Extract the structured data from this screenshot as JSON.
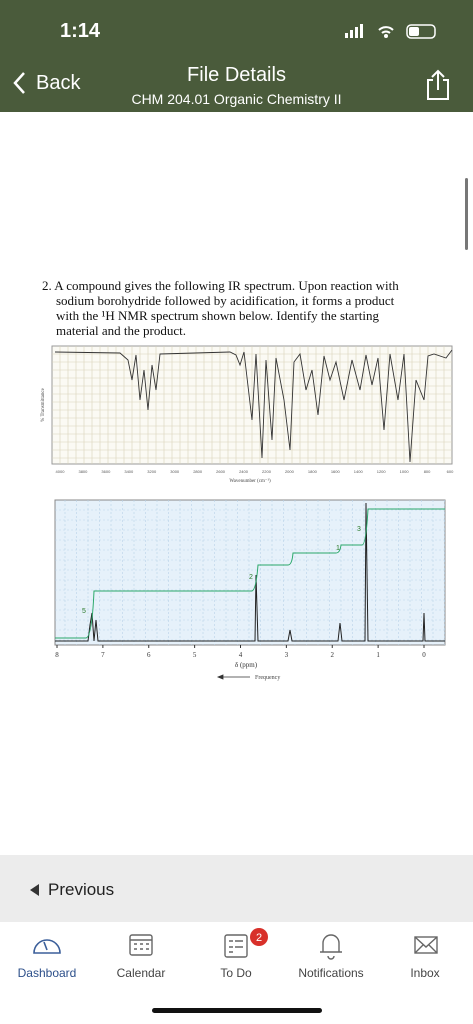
{
  "status_bar": {
    "time": "1:14"
  },
  "header": {
    "back": "Back",
    "title": "File Details",
    "subtitle": "CHM 204.01 Organic Chemistry II"
  },
  "document": {
    "question_lines": [
      "2. A compound gives the following IR spectrum.  Upon reaction with",
      "sodium borohydride followed by acidification, it forms a product",
      "with the ¹H NMR spectrum shown below.  Identify the starting",
      "material and the product."
    ],
    "ir_spectrum": {
      "y_label": "% Transmittance",
      "x_label": "Wavenumber (cm⁻¹)",
      "x_ticks": [
        "4000",
        "3800",
        "3600",
        "3400",
        "3200",
        "3000",
        "2800",
        "2600",
        "2400",
        "2200",
        "2000",
        "1800",
        "1600",
        "1400",
        "1200",
        "1000",
        "800",
        "600"
      ]
    },
    "nmr_spectrum": {
      "x_ticks": [
        "8",
        "7",
        "6",
        "5",
        "4",
        "3",
        "2",
        "1",
        "0"
      ],
      "x_label": "δ (ppm)",
      "direction_label": "Frequency",
      "integrations": [
        "5",
        "2",
        "1",
        "3"
      ]
    }
  },
  "pager": {
    "previous": "Previous"
  },
  "tab_bar": {
    "tabs": [
      "Dashboard",
      "Calendar",
      "To Do",
      "Notifications",
      "Inbox"
    ],
    "badge": "2"
  }
}
